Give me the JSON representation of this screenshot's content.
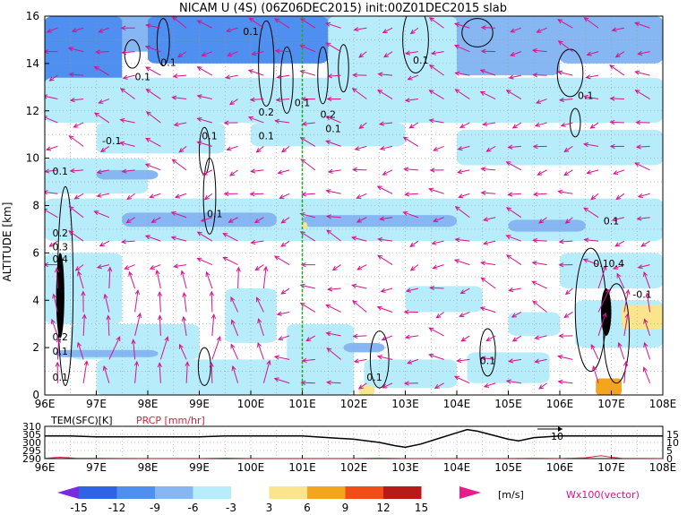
{
  "title": "NICAM  U  (4S)  (06Z06DEC2015)  init:00Z01DEC2015  slab",
  "chart_data": [
    {
      "type": "heatmap",
      "panel": "main",
      "ylabel": "ALTITUDE  [km]",
      "x_ticks": [
        "96E",
        "97E",
        "98E",
        "99E",
        "100E",
        "101E",
        "102E",
        "103E",
        "104E",
        "105E",
        "106E",
        "107E",
        "108E"
      ],
      "y_ticks": [
        "0",
        "2",
        "4",
        "6",
        "8",
        "10",
        "12",
        "14",
        "16"
      ],
      "xlim": [
        96,
        108
      ],
      "ylim": [
        0,
        16
      ],
      "grid": true,
      "shaded_variable": "U",
      "vector_variable": "Wx100",
      "marker_line_longitude": 101,
      "marker_line_color": "#22aa22",
      "contour_labels": [
        {
          "text": "0.1",
          "lon": 98.4,
          "alt": 13.9
        },
        {
          "text": "0.1",
          "lon": 97.9,
          "alt": 13.3
        },
        {
          "text": "0.1",
          "lon": 100.0,
          "alt": 15.2
        },
        {
          "text": "0.1",
          "lon": 101.0,
          "alt": 12.2
        },
        {
          "text": "0.2",
          "lon": 100.3,
          "alt": 11.8
        },
        {
          "text": "0.2",
          "lon": 101.5,
          "alt": 11.7
        },
        {
          "text": "0.1",
          "lon": 101.6,
          "alt": 11.1
        },
        {
          "text": "0.1",
          "lon": 100.3,
          "alt": 10.8
        },
        {
          "text": "0.1",
          "lon": 99.2,
          "alt": 10.8
        },
        {
          "text": "-0.1",
          "lon": 97.3,
          "alt": 10.6
        },
        {
          "text": "0.1",
          "lon": 96.3,
          "alt": 9.3
        },
        {
          "text": "0.1",
          "lon": 103.3,
          "alt": 14.0
        },
        {
          "text": "0.1",
          "lon": 106.5,
          "alt": 12.5
        },
        {
          "text": "0.1",
          "lon": 99.3,
          "alt": 7.5
        },
        {
          "text": "0.2",
          "lon": 96.3,
          "alt": 6.7
        },
        {
          "text": "0.3",
          "lon": 96.3,
          "alt": 6.1
        },
        {
          "text": "0.4",
          "lon": 96.3,
          "alt": 5.6
        },
        {
          "text": "0.1",
          "lon": 107.0,
          "alt": 7.2
        },
        {
          "text": "0.1",
          "lon": 106.8,
          "alt": 5.4
        },
        {
          "text": "0.4",
          "lon": 107.1,
          "alt": 5.4
        },
        {
          "text": "-0.1",
          "lon": 107.6,
          "alt": 4.1
        },
        {
          "text": "0.2",
          "lon": 96.3,
          "alt": 2.3
        },
        {
          "text": "0.1",
          "lon": 96.3,
          "alt": 1.7
        },
        {
          "text": "0.1",
          "lon": 96.3,
          "alt": 0.6
        },
        {
          "text": "0.1",
          "lon": 102.4,
          "alt": 0.6
        },
        {
          "text": "0.1",
          "lon": 104.6,
          "alt": 1.3
        }
      ]
    },
    {
      "type": "line",
      "panel": "timeseries",
      "label_left": "TEM(SFC)[K]",
      "label_mid": "PRCP [mm/hr]",
      "left_ticks": [
        "310",
        "305",
        "300",
        "295",
        "290"
      ],
      "right_ticks": [
        "15",
        "10",
        "5",
        "0"
      ],
      "inline_label": "10",
      "series": [
        {
          "name": "TEM(SFC)[K]",
          "color": "#000000",
          "x": [
            96,
            96.5,
            97,
            97.5,
            98,
            98.5,
            99,
            99.5,
            100,
            100.5,
            101,
            101.5,
            102,
            102.5,
            102.8,
            103,
            103.3,
            103.6,
            104,
            104.2,
            104.4,
            104.7,
            105,
            105.2,
            105.5,
            106,
            106.5,
            107,
            107.5,
            108
          ],
          "y": [
            304,
            304,
            303.5,
            303.5,
            303.5,
            303.5,
            303.5,
            304,
            304,
            304,
            304,
            303,
            302,
            300,
            298,
            297,
            299,
            302,
            306,
            308,
            307,
            304.5,
            302,
            301,
            303,
            304,
            304,
            304,
            304,
            304
          ]
        },
        {
          "name": "PRCP [mm/hr]",
          "color": "#e0203a",
          "x": [
            96,
            96.3,
            96.6,
            97,
            98,
            99,
            99.5,
            100,
            101,
            102,
            102.5,
            103,
            104,
            105,
            105.5,
            106,
            106.5,
            106.8,
            107,
            107.2,
            108
          ],
          "y": [
            0.2,
            0.8,
            0.3,
            0.2,
            0.1,
            0.1,
            0.3,
            0.1,
            0.1,
            0.1,
            0.3,
            0.1,
            0.1,
            0.1,
            0.2,
            0.1,
            0.5,
            1.8,
            0.8,
            0.2,
            0.1
          ]
        }
      ],
      "x_ticks": [
        "96E",
        "97E",
        "98E",
        "99E",
        "100E",
        "101E",
        "102E",
        "103E",
        "104E",
        "105E",
        "106E",
        "107E",
        "108E"
      ]
    }
  ],
  "colorbar": {
    "ticks": [
      "-15",
      "-12",
      "-9",
      "-6",
      "-3",
      "3",
      "6",
      "9",
      "12",
      "15"
    ],
    "unit": "[m/s]",
    "colors": [
      "#7a2be0",
      "#2f63e6",
      "#4f8ff0",
      "#86b7f2",
      "#b7ecfb",
      "#ffffff",
      "#fae48c",
      "#f4a51e",
      "#f04e16",
      "#b81a1a",
      "#e81c8a"
    ]
  },
  "vector_label": "Wx100(vector)",
  "colors": {
    "vector": "#d4148c",
    "marker_line": "#22aa22"
  }
}
